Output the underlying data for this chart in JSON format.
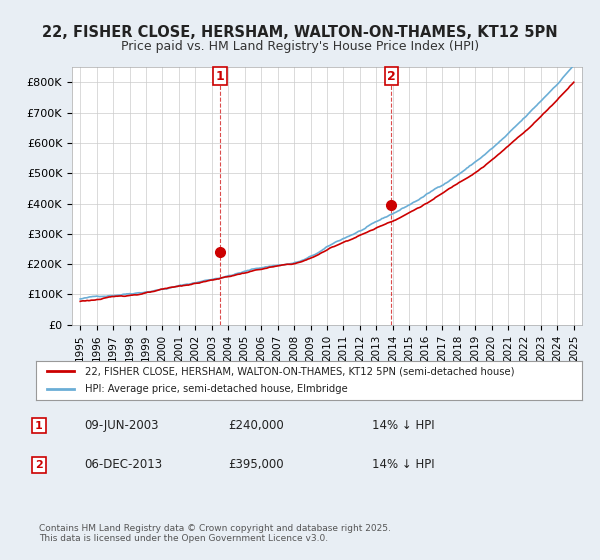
{
  "title": "22, FISHER CLOSE, HERSHAM, WALTON-ON-THAMES, KT12 5PN",
  "subtitle": "Price paid vs. HM Land Registry's House Price Index (HPI)",
  "hpi_color": "#6baed6",
  "price_color": "#cc0000",
  "background_color": "#f0f4f8",
  "plot_bg_color": "#ffffff",
  "ylim": [
    0,
    850000
  ],
  "yticks": [
    0,
    100000,
    200000,
    300000,
    400000,
    500000,
    600000,
    700000,
    800000
  ],
  "year_start": 1995,
  "year_end": 2025,
  "sale1": {
    "date": "09-JUN-2003",
    "price": 240000,
    "label": "1",
    "hpi_diff": "14% ↓ HPI"
  },
  "sale2": {
    "date": "06-DEC-2013",
    "price": 395000,
    "label": "2",
    "hpi_diff": "14% ↓ HPI"
  },
  "legend_line1": "22, FISHER CLOSE, HERSHAM, WALTON-ON-THAMES, KT12 5PN (semi-detached house)",
  "legend_line2": "HPI: Average price, semi-detached house, Elmbridge",
  "footnote": "Contains HM Land Registry data © Crown copyright and database right 2025.\nThis data is licensed under the Open Government Licence v3.0.",
  "xlabel": "",
  "ylabel": ""
}
